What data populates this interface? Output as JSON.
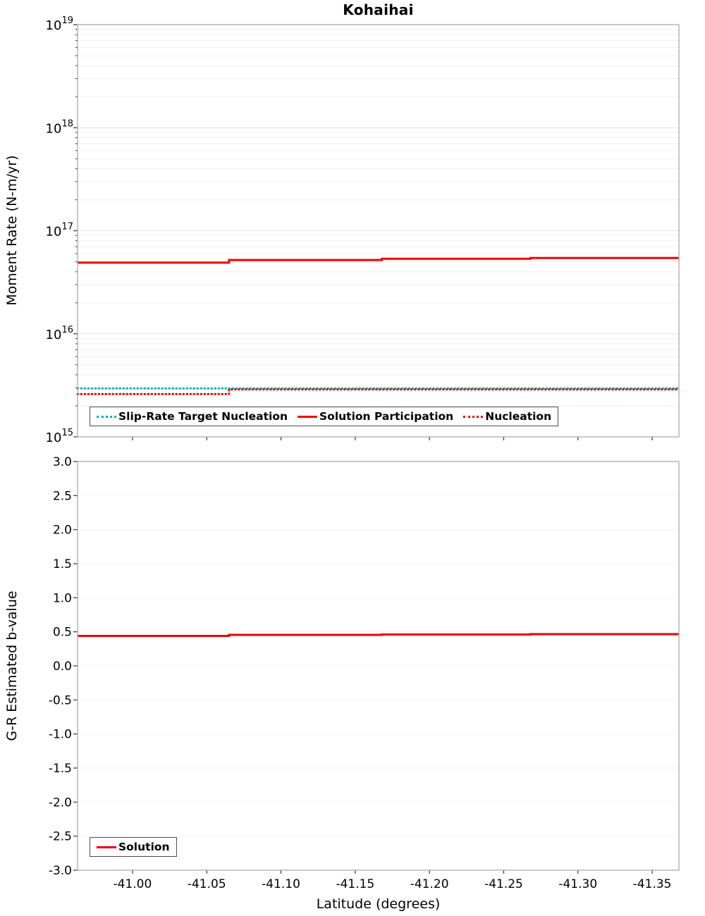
{
  "title": "Kohaihai",
  "x_axis": {
    "label": "Latitude (degrees)",
    "range": [
      -40.963,
      -41.368
    ],
    "tick_values": [
      -41.0,
      -41.05,
      -41.1,
      -41.15,
      -41.2,
      -41.25,
      -41.3,
      -41.35
    ],
    "ticks": [
      "-41.00",
      "-41.05",
      "-41.10",
      "-41.15",
      "-41.20",
      "-41.25",
      "-41.30",
      "-41.35"
    ]
  },
  "chart_data": [
    {
      "type": "line",
      "ylabel": "Moment Rate (N-m/yr)",
      "yscale": "log",
      "ylim": [
        1000000000000000.0,
        1e+19
      ],
      "y_tick_exponents": [
        15,
        16,
        17,
        18,
        19
      ],
      "grid": "horizontal-log",
      "legend_position": "inside-bottom-center",
      "series": [
        {
          "name": "Slip-Rate Target Nucleation",
          "color": "#00b3b8",
          "style": "dotted",
          "x": [
            -40.963,
            -41.368
          ],
          "y": [
            2950000000000000.0,
            2950000000000000.0
          ]
        },
        {
          "name": "Solution Participation",
          "color": "#ee0000",
          "style": "solid",
          "x": [
            -40.963,
            -41.065,
            -41.065,
            -41.168,
            -41.168,
            -41.268,
            -41.268,
            -41.368
          ],
          "y": [
            4.9e+16,
            4.9e+16,
            5.2e+16,
            5.2e+16,
            5.35e+16,
            5.35e+16,
            5.45e+16,
            5.45e+16
          ]
        },
        {
          "name": "Nucleation",
          "color": "#ee0000",
          "style": "dotted",
          "x": [
            -40.963,
            -41.065,
            -41.065,
            -41.368
          ],
          "y": [
            2600000000000000.0,
            2600000000000000.0,
            2880000000000000.0,
            2880000000000000.0
          ]
        }
      ]
    },
    {
      "type": "line",
      "ylabel": "G-R Estimated b-value",
      "yscale": "linear",
      "ylim": [
        -3.0,
        3.0
      ],
      "y_ticks": [
        3.0,
        2.5,
        2.0,
        1.5,
        1.0,
        0.5,
        0.0,
        -0.5,
        -1.0,
        -1.5,
        -2.0,
        -2.5,
        -3.0
      ],
      "y_tick_labels": [
        "3.0",
        "2.5",
        "2.0",
        "1.5",
        "1.0",
        "0.5",
        "0.0",
        "-0.5",
        "-1.0",
        "-1.5",
        "-2.0",
        "-2.5",
        "-3.0"
      ],
      "xlabel": "Latitude (degrees)",
      "grid": "faint-horizontal",
      "legend_position": "inside-bottom-left",
      "series": [
        {
          "name": "Solution",
          "color": "#ee0000",
          "style": "solid",
          "x": [
            -40.963,
            -41.065,
            -41.065,
            -41.168,
            -41.168,
            -41.268,
            -41.268,
            -41.368
          ],
          "y": [
            0.44,
            0.44,
            0.455,
            0.455,
            0.46,
            0.46,
            0.465,
            0.465
          ]
        }
      ]
    }
  ]
}
